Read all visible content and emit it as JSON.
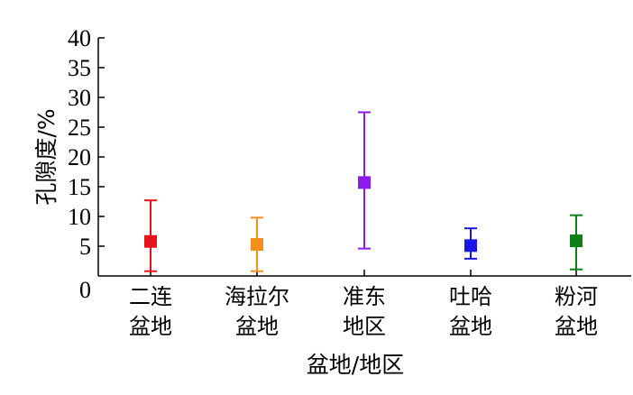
{
  "chart_data": {
    "type": "scatter",
    "error_bars": true,
    "title": "",
    "xlabel": "盆地/地区",
    "ylabel": "孔隙度/%",
    "ylim": [
      0,
      40
    ],
    "yticks": [
      0,
      5,
      10,
      15,
      20,
      25,
      30,
      35,
      40
    ],
    "grid": false,
    "legend": "none",
    "categories": [
      {
        "label_lines": [
          "二连",
          "盆地"
        ],
        "value": 5.8,
        "min": 0.8,
        "max": 12.7,
        "color": "#e8141c"
      },
      {
        "label_lines": [
          "海拉尔",
          "盆地"
        ],
        "value": 5.3,
        "min": 0.8,
        "max": 9.8,
        "color": "#f39019"
      },
      {
        "label_lines": [
          "准东",
          "地区"
        ],
        "value": 15.7,
        "min": 4.6,
        "max": 27.5,
        "color": "#8b1cf0"
      },
      {
        "label_lines": [
          "吐哈",
          "盆地"
        ],
        "value": 5.1,
        "min": 2.9,
        "max": 8.0,
        "color": "#1616e8"
      },
      {
        "label_lines": [
          "粉河",
          "盆地"
        ],
        "value": 5.9,
        "min": 1.1,
        "max": 10.2,
        "color": "#0d7f14"
      }
    ]
  }
}
